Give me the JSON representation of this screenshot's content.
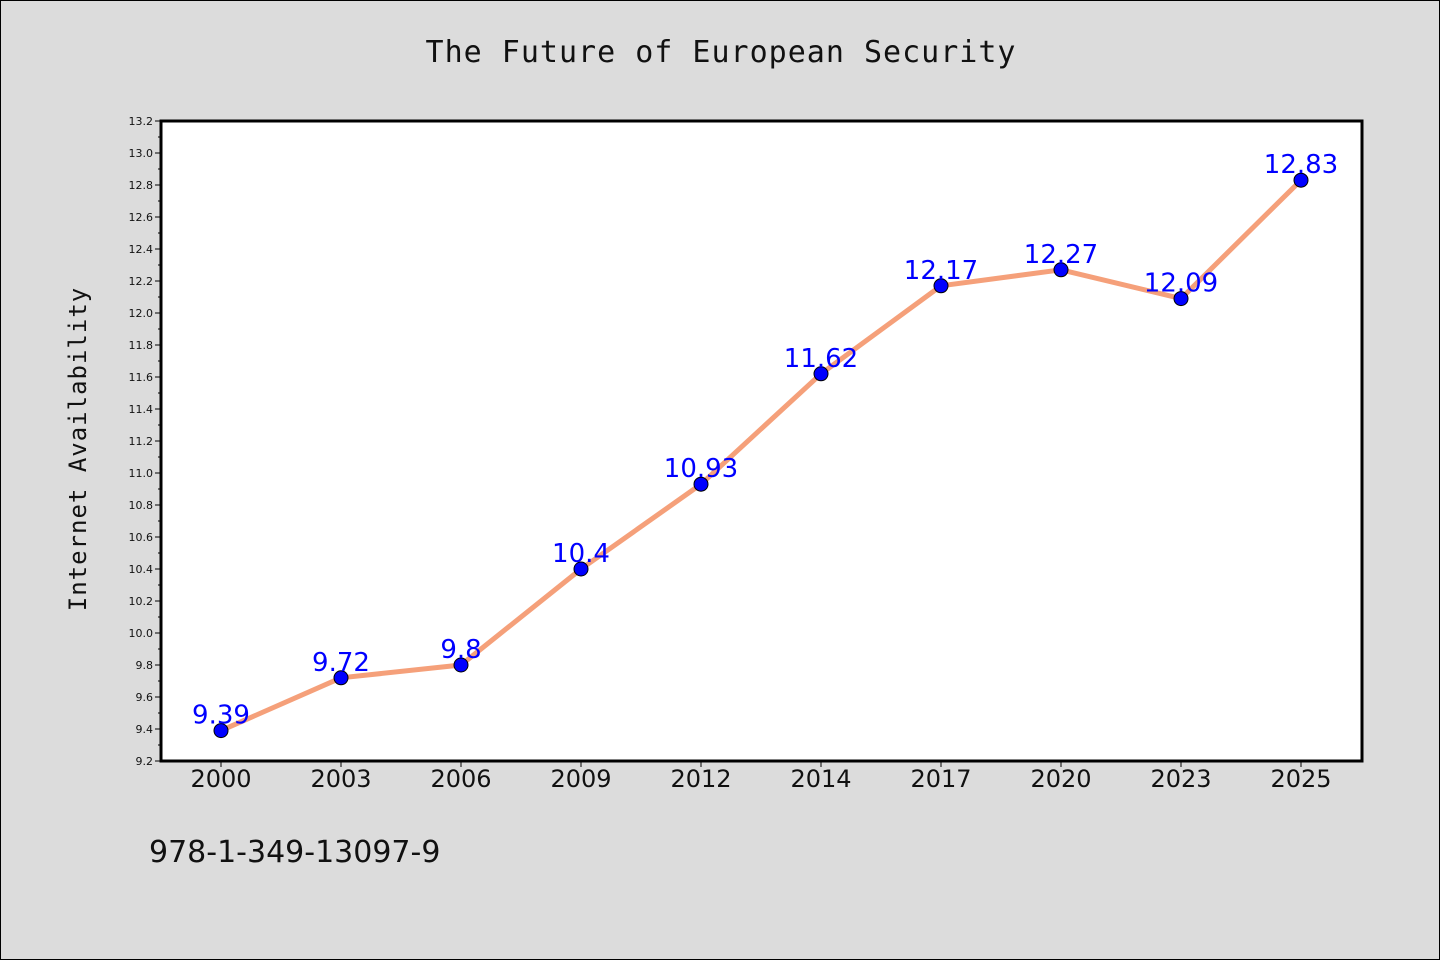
{
  "page": {
    "isbn": "978-1-349-13097-9"
  },
  "colors": {
    "line": "#f5a07a",
    "marker": "#0000ff",
    "label": "#0000ff",
    "background": "#dcdcdc",
    "plot_bg": "#ffffff"
  },
  "chart_data": {
    "type": "line",
    "title": "The Future of European Security",
    "xlabel": "",
    "ylabel": "Internet Availability",
    "categories": [
      "2000",
      "2003",
      "2006",
      "2009",
      "2012",
      "2014",
      "2017",
      "2020",
      "2023",
      "2025"
    ],
    "series": [
      {
        "values": [
          9.39,
          9.72,
          9.8,
          10.4,
          10.93,
          11.62,
          12.17,
          12.27,
          12.09,
          12.83
        ],
        "labels": [
          "9.39",
          "9.72",
          "9.8",
          "10.4",
          "10.93",
          "11.62",
          "12.17",
          "12.27",
          "12.09",
          "12.83"
        ]
      }
    ],
    "ylim": [
      9.2,
      13.2
    ],
    "yticks": [
      "9.2",
      "9.4",
      "9.6",
      "9.8",
      "10.0",
      "10.2",
      "10.4",
      "10.6",
      "10.8",
      "11.0",
      "11.2",
      "11.4",
      "11.6",
      "11.8",
      "12.0",
      "12.2",
      "12.4",
      "12.6",
      "12.8",
      "13.0",
      "13.2"
    ],
    "grid": false,
    "legend": "none"
  }
}
